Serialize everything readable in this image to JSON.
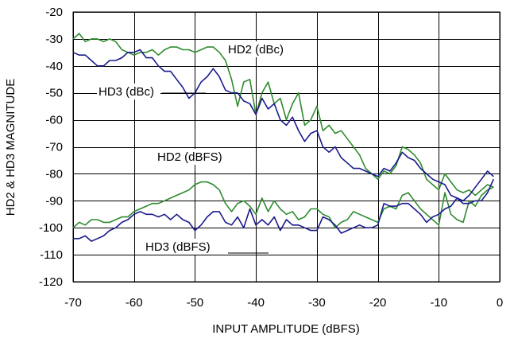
{
  "chart_data": {
    "type": "line",
    "xlabel": "INPUT AMPLITUDE (dBFS)",
    "ylabel": "HD2 & HD3 MAGNITUDE",
    "xlim": [
      -70,
      0
    ],
    "ylim": [
      -120,
      -20
    ],
    "xticks": [
      -70,
      -60,
      -50,
      -40,
      -30,
      -20,
      -10,
      0
    ],
    "yticks": [
      -20,
      -30,
      -40,
      -50,
      -60,
      -70,
      -80,
      -90,
      -100,
      -110,
      -120
    ],
    "grid": true,
    "colors": {
      "green": "#2e8b2e",
      "blue": "#1a1a8c"
    },
    "annotations": {
      "hd2_dbc": "HD2 (dBc)",
      "hd3_dbc": "HD3 (dBc)",
      "hd2_dbfs": "HD2 (dBFS)",
      "hd3_dbfs": "HD3 (dBFS)"
    },
    "series": [
      {
        "color": "green",
        "x": [
          -70,
          -69,
          -68,
          -67,
          -66,
          -65,
          -64,
          -63,
          -62,
          -61,
          -60,
          -59,
          -58,
          -57,
          -56,
          -55,
          -54,
          -53,
          -52,
          -51,
          -50,
          -49,
          -48,
          -47,
          -46,
          -45,
          -44,
          -43,
          -42,
          -41,
          -40,
          -39,
          -38,
          -37,
          -36,
          -35,
          -34,
          -33,
          -32,
          -31,
          -30,
          -29,
          -28,
          -27,
          -26,
          -25,
          -24,
          -23,
          -22,
          -21,
          -20,
          -19,
          -18,
          -17,
          -16,
          -15,
          -14,
          -13,
          -12,
          -11,
          -10,
          -9,
          -8,
          -7,
          -6,
          -5,
          -4,
          -3,
          -2,
          -1
        ],
        "y": [
          -30,
          -28,
          -31,
          -30,
          -30,
          -31,
          -30,
          -31,
          -34,
          -35,
          -36,
          -35,
          -35,
          -34,
          -36,
          -34,
          -33,
          -33,
          -34,
          -34,
          -35,
          -34,
          -33,
          -33,
          -35,
          -38,
          -45,
          -55,
          -46,
          -45,
          -58,
          -50,
          -46,
          -54,
          -52,
          -60,
          -54,
          -50,
          -62,
          -60,
          -55,
          -64,
          -62,
          -65,
          -64,
          -67,
          -70,
          -73,
          -78,
          -80,
          -82,
          -79,
          -80,
          -77,
          -70,
          -71,
          -73,
          -76,
          -82,
          -84,
          -86,
          -80,
          -83,
          -86,
          -87,
          -86,
          -88,
          -86,
          -84,
          -85
        ]
      },
      {
        "color": "blue",
        "x": [
          -70,
          -69,
          -68,
          -67,
          -66,
          -65,
          -64,
          -63,
          -62,
          -61,
          -60,
          -59,
          -58,
          -57,
          -56,
          -55,
          -54,
          -53,
          -52,
          -51,
          -50,
          -49,
          -48,
          -47,
          -46,
          -45,
          -44,
          -43,
          -42,
          -41,
          -40,
          -39,
          -38,
          -37,
          -36,
          -35,
          -34,
          -33,
          -32,
          -31,
          -30,
          -29,
          -28,
          -27,
          -26,
          -25,
          -24,
          -23,
          -22,
          -21,
          -20,
          -19,
          -18,
          -17,
          -16,
          -15,
          -14,
          -13,
          -12,
          -11,
          -10,
          -9,
          -8,
          -7,
          -6,
          -5,
          -4,
          -3,
          -2,
          -1
        ],
        "y": [
          -35,
          -36,
          -36,
          -38,
          -40,
          -40,
          -38,
          -38,
          -37,
          -35,
          -35,
          -34,
          -37,
          -37,
          -40,
          -42,
          -42,
          -45,
          -48,
          -52,
          -50,
          -46,
          -44,
          -41,
          -44,
          -49,
          -50,
          -50,
          -53,
          -54,
          -58,
          -52,
          -56,
          -54,
          -60,
          -62,
          -59,
          -64,
          -68,
          -65,
          -64,
          -70,
          -72,
          -70,
          -74,
          -76,
          -78,
          -78,
          -79,
          -80,
          -81,
          -78,
          -79,
          -76,
          -72,
          -74,
          -75,
          -78,
          -80,
          -82,
          -83,
          -84,
          -88,
          -89,
          -90,
          -88,
          -85,
          -82,
          -79,
          -81
        ]
      },
      {
        "color": "green",
        "x": [
          -70,
          -69,
          -68,
          -67,
          -66,
          -65,
          -64,
          -63,
          -62,
          -61,
          -60,
          -59,
          -58,
          -57,
          -56,
          -55,
          -54,
          -53,
          -52,
          -51,
          -50,
          -49,
          -48,
          -47,
          -46,
          -45,
          -44,
          -43,
          -42,
          -41,
          -40,
          -39,
          -38,
          -37,
          -36,
          -35,
          -34,
          -33,
          -32,
          -31,
          -30,
          -29,
          -28,
          -27,
          -26,
          -25,
          -24,
          -23,
          -22,
          -21,
          -20,
          -19,
          -18,
          -17,
          -16,
          -15,
          -14,
          -13,
          -12,
          -11,
          -10,
          -9,
          -8,
          -7,
          -6,
          -5,
          -4,
          -3,
          -2,
          -1
        ],
        "y": [
          -100,
          -98,
          -99,
          -97,
          -97,
          -98,
          -98,
          -97,
          -96,
          -96,
          -94,
          -93,
          -92,
          -91,
          -91,
          -90,
          -89,
          -88,
          -87,
          -86,
          -84,
          -83,
          -83,
          -84,
          -86,
          -91,
          -94,
          -91,
          -90,
          -92,
          -95,
          -89,
          -94,
          -90,
          -93,
          -95,
          -94,
          -97,
          -96,
          -93,
          -93,
          -95,
          -96,
          -100,
          -98,
          -97,
          -94,
          -95,
          -96,
          -97,
          -98,
          -93,
          -92,
          -93,
          -88,
          -87,
          -90,
          -93,
          -95,
          -97,
          -99,
          -87,
          -95,
          -97,
          -98,
          -90,
          -92,
          -88,
          -86,
          -85
        ]
      },
      {
        "color": "blue",
        "x": [
          -70,
          -69,
          -68,
          -67,
          -66,
          -65,
          -64,
          -63,
          -62,
          -61,
          -60,
          -59,
          -58,
          -57,
          -56,
          -55,
          -54,
          -53,
          -52,
          -51,
          -50,
          -49,
          -48,
          -47,
          -46,
          -45,
          -44,
          -43,
          -42,
          -41,
          -40,
          -39,
          -38,
          -37,
          -36,
          -35,
          -34,
          -33,
          -32,
          -31,
          -30,
          -29,
          -28,
          -27,
          -26,
          -25,
          -24,
          -23,
          -22,
          -21,
          -20,
          -19,
          -18,
          -17,
          -16,
          -15,
          -14,
          -13,
          -12,
          -11,
          -10,
          -9,
          -8,
          -7,
          -6,
          -5,
          -4,
          -3,
          -2,
          -1
        ],
        "y": [
          -104,
          -104,
          -103,
          -105,
          -104,
          -103,
          -101,
          -100,
          -98,
          -97,
          -95,
          -94,
          -95,
          -95,
          -96,
          -95,
          -97,
          -95,
          -97,
          -98,
          -101,
          -99,
          -96,
          -94,
          -94,
          -98,
          -99,
          -96,
          -100,
          -93,
          -99,
          -97,
          -99,
          -96,
          -101,
          -97,
          -99,
          -99,
          -100,
          -101,
          -101,
          -96,
          -97,
          -99,
          -102,
          -101,
          -100,
          -99,
          -100,
          -100,
          -99,
          -91,
          -92,
          -92,
          -91,
          -91,
          -93,
          -95,
          -98,
          -96,
          -95,
          -93,
          -92,
          -89,
          -91,
          -91,
          -90,
          -90,
          -87,
          -82
        ]
      }
    ]
  }
}
